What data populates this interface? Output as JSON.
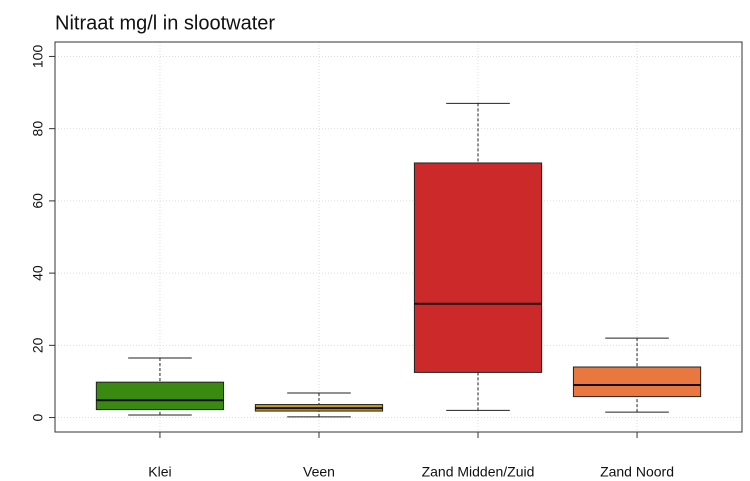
{
  "chart_data": {
    "type": "box",
    "title": "Nitraat mg/l in slootwater",
    "categories": [
      "Klei",
      "Veen",
      "Zand Midden/Zuid",
      "Zand Noord"
    ],
    "min": [
      0.7,
      0.2,
      2,
      1.5
    ],
    "q1": [
      2.2,
      1.8,
      12.5,
      5.8
    ],
    "median": [
      4.8,
      2.6,
      31.5,
      9
    ],
    "q3": [
      9.8,
      3.6,
      70.5,
      14
    ],
    "max": [
      16.5,
      6.8,
      87,
      22
    ],
    "colors": [
      "#3a8a12",
      "#c89a1a",
      "#cc2a2a",
      "#e87840"
    ],
    "ylim": [
      0,
      100
    ],
    "yticks": [
      0,
      20,
      40,
      60,
      80,
      100
    ],
    "grid": true
  }
}
